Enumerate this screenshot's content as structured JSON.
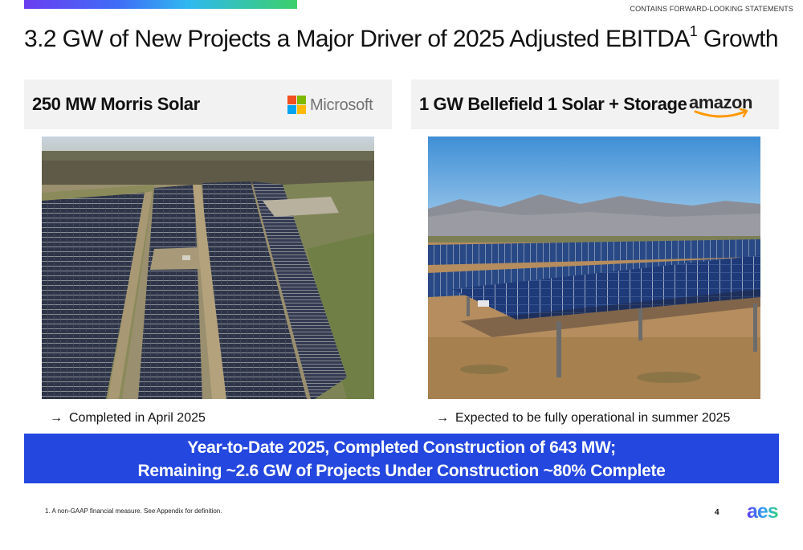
{
  "header": {
    "disclaimer": "CONTAINS FORWARD-LOOKING STATEMENTS",
    "title": "3.2 GW of New Projects a Major Driver of 2025 Adjusted EBITDA",
    "title_sup": "1",
    "title_suffix": " Growth"
  },
  "panels": [
    {
      "title": "250 MW Morris Solar",
      "logo_text": "Microsoft",
      "caption_arrow": "→",
      "caption": "Completed in April 2025"
    },
    {
      "title": "1 GW Bellefield 1 Solar + Storage",
      "logo_text": "amazon",
      "caption_arrow": "→",
      "caption": "Expected to be fully operational in summer 2025"
    }
  ],
  "banner": {
    "line1": "Year-to-Date 2025, Completed Construction of 643 MW;",
    "line2": "Remaining ~2.6 GW of Projects Under Construction ~80% Complete"
  },
  "footer": {
    "footnote": "1.   A non-GAAP financial measure.  See Appendix for definition.",
    "page_number": "4",
    "logo_text": "aes"
  },
  "colors": {
    "banner": "#2447e0",
    "panel_header_bg": "#f2f2f2",
    "ms_red": "#f25022",
    "ms_green": "#7fba00",
    "ms_blue": "#00a4ef",
    "ms_yellow": "#ffb900",
    "amazon_smile": "#ff9900"
  }
}
